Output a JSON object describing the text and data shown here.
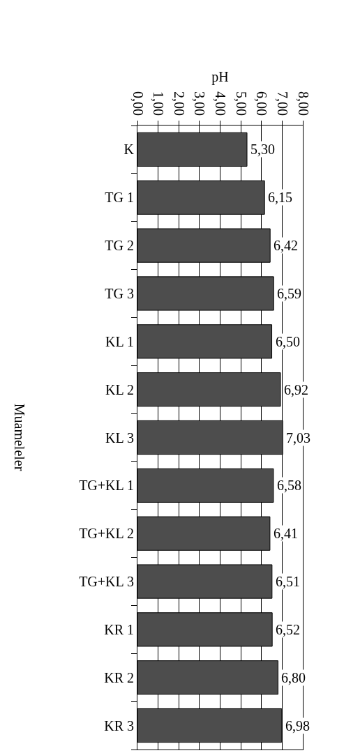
{
  "chart_data": {
    "type": "bar",
    "orientation": "horizontal",
    "xlabel": "pH",
    "ylabel": "Muameleler",
    "categories": [
      "K",
      "TG 1",
      "TG 2",
      "TG 3",
      "KL 1",
      "KL 2",
      "KL 3",
      "TG+KL 1",
      "TG+KL 2",
      "TG+KL 3",
      "KR 1",
      "KR 2",
      "KR 3"
    ],
    "values": [
      5.3,
      6.15,
      6.42,
      6.59,
      6.5,
      6.92,
      7.03,
      6.58,
      6.41,
      6.51,
      6.52,
      6.8,
      6.98
    ],
    "value_labels": [
      "5,30",
      "6,15",
      "6,42",
      "6,59",
      "6,50",
      "6,92",
      "7,03",
      "6,58",
      "6,41",
      "6,51",
      "6,52",
      "6,80",
      "6,98"
    ],
    "color": "#4d4d4d",
    "xlim": [
      0,
      8
    ],
    "xticks": [
      {
        "value": 0,
        "label": "0,00"
      },
      {
        "value": 1,
        "label": "1,00"
      },
      {
        "value": 2,
        "label": "2,00"
      },
      {
        "value": 3,
        "label": "3,00"
      },
      {
        "value": 4,
        "label": "4,00"
      },
      {
        "value": 5,
        "label": "5,00"
      },
      {
        "value": 6,
        "label": "6,00"
      },
      {
        "value": 7,
        "label": "7,00"
      },
      {
        "value": 8,
        "label": "8,00"
      }
    ],
    "grid": "x",
    "legend": false
  }
}
